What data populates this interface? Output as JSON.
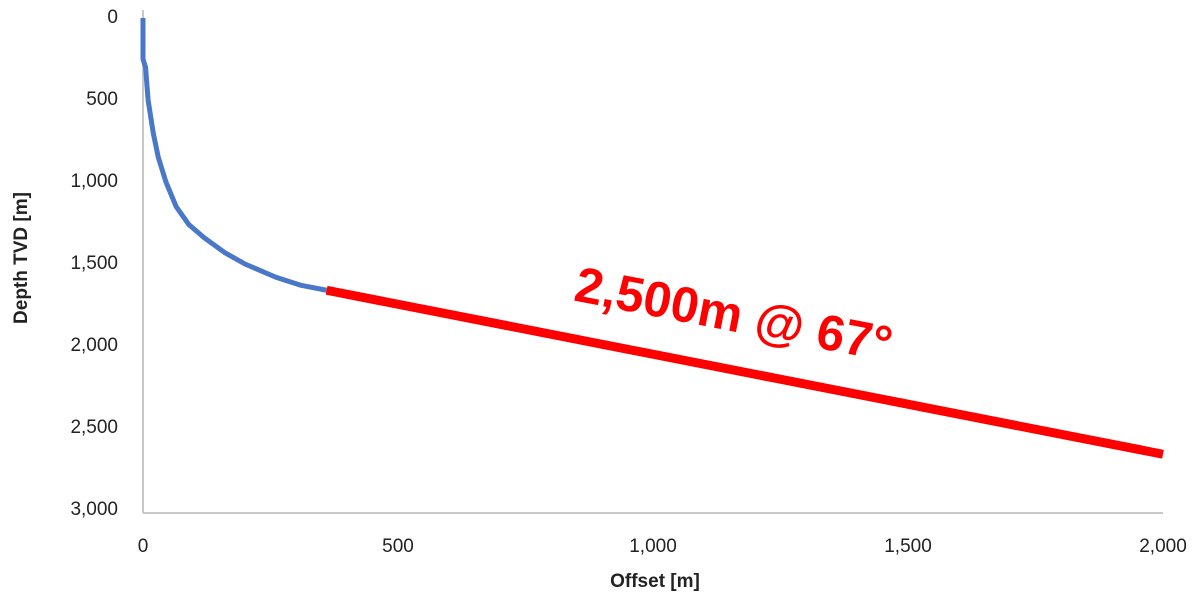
{
  "chart_data": {
    "type": "line",
    "xlabel": "Offset [m]",
    "ylabel": "Depth TVD [m]",
    "series": [
      {
        "color": "#4a78c9",
        "x": [
          0,
          0,
          5,
          10,
          20,
          30,
          45,
          65,
          90,
          120,
          160,
          200,
          260,
          310,
          360
        ],
        "values": [
          0,
          250,
          300,
          500,
          700,
          850,
          1000,
          1150,
          1260,
          1340,
          1430,
          1500,
          1580,
          1630,
          1660
        ]
      },
      {
        "color": "#ff0000",
        "x": [
          360,
          2000
        ],
        "values": [
          1660,
          2660
        ]
      }
    ],
    "annotation": "2,500m @ 67°",
    "xlim": [
      0,
      2000
    ],
    "ylim": [
      0,
      3000
    ],
    "y_reversed": true,
    "xticks": [
      0,
      500,
      {
        "value": 1000,
        "label": "1,000"
      },
      {
        "value": 1500,
        "label": "1,500"
      },
      {
        "value": 2000,
        "label": "2,000"
      }
    ],
    "yticks": [
      0,
      500,
      {
        "value": 1000,
        "label": "1,000"
      },
      {
        "value": 1500,
        "label": "1,500"
      },
      {
        "value": 2000,
        "label": "2,000"
      },
      {
        "value": 2500,
        "label": "2,500"
      },
      {
        "value": 3000,
        "label": "3,000"
      }
    ],
    "grid": false
  }
}
